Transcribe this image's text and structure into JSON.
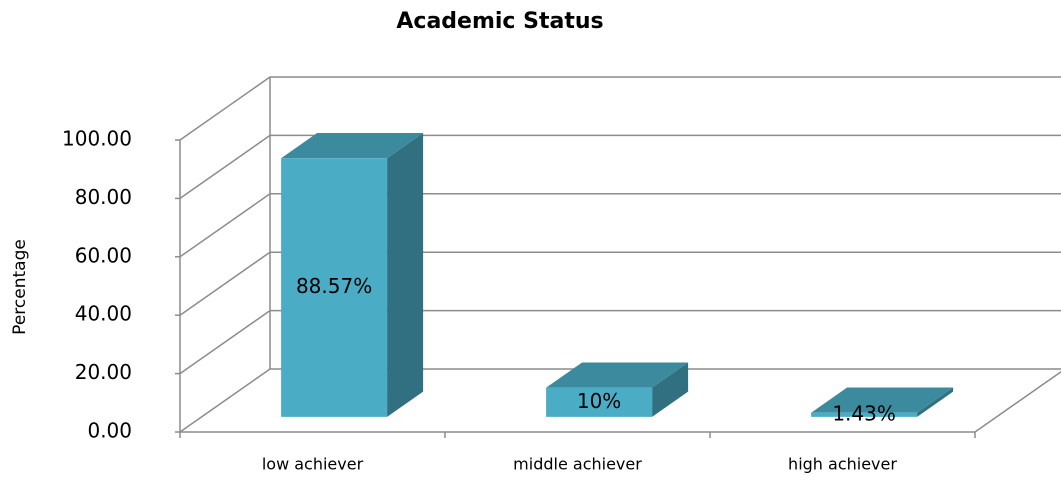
{
  "chart_data": {
    "type": "bar3d",
    "title": "Academic Status",
    "y_label": "Percentage",
    "categories": [
      "low achiever",
      "middle achiever",
      "high achiever"
    ],
    "values": [
      88.57,
      10,
      1.43
    ],
    "value_labels": [
      "88.57%",
      "10%",
      "1.43%"
    ],
    "color": "#4bacc6",
    "ylim": [
      0,
      100
    ],
    "yticks": [
      {
        "value": 0,
        "label": "0.00"
      },
      {
        "value": 20,
        "label": "20.00"
      },
      {
        "value": 40,
        "label": "40.00"
      },
      {
        "value": 60,
        "label": "60.00"
      },
      {
        "value": 80,
        "label": "80.00"
      },
      {
        "value": 100,
        "label": "100.00"
      }
    ],
    "grid": true
  }
}
